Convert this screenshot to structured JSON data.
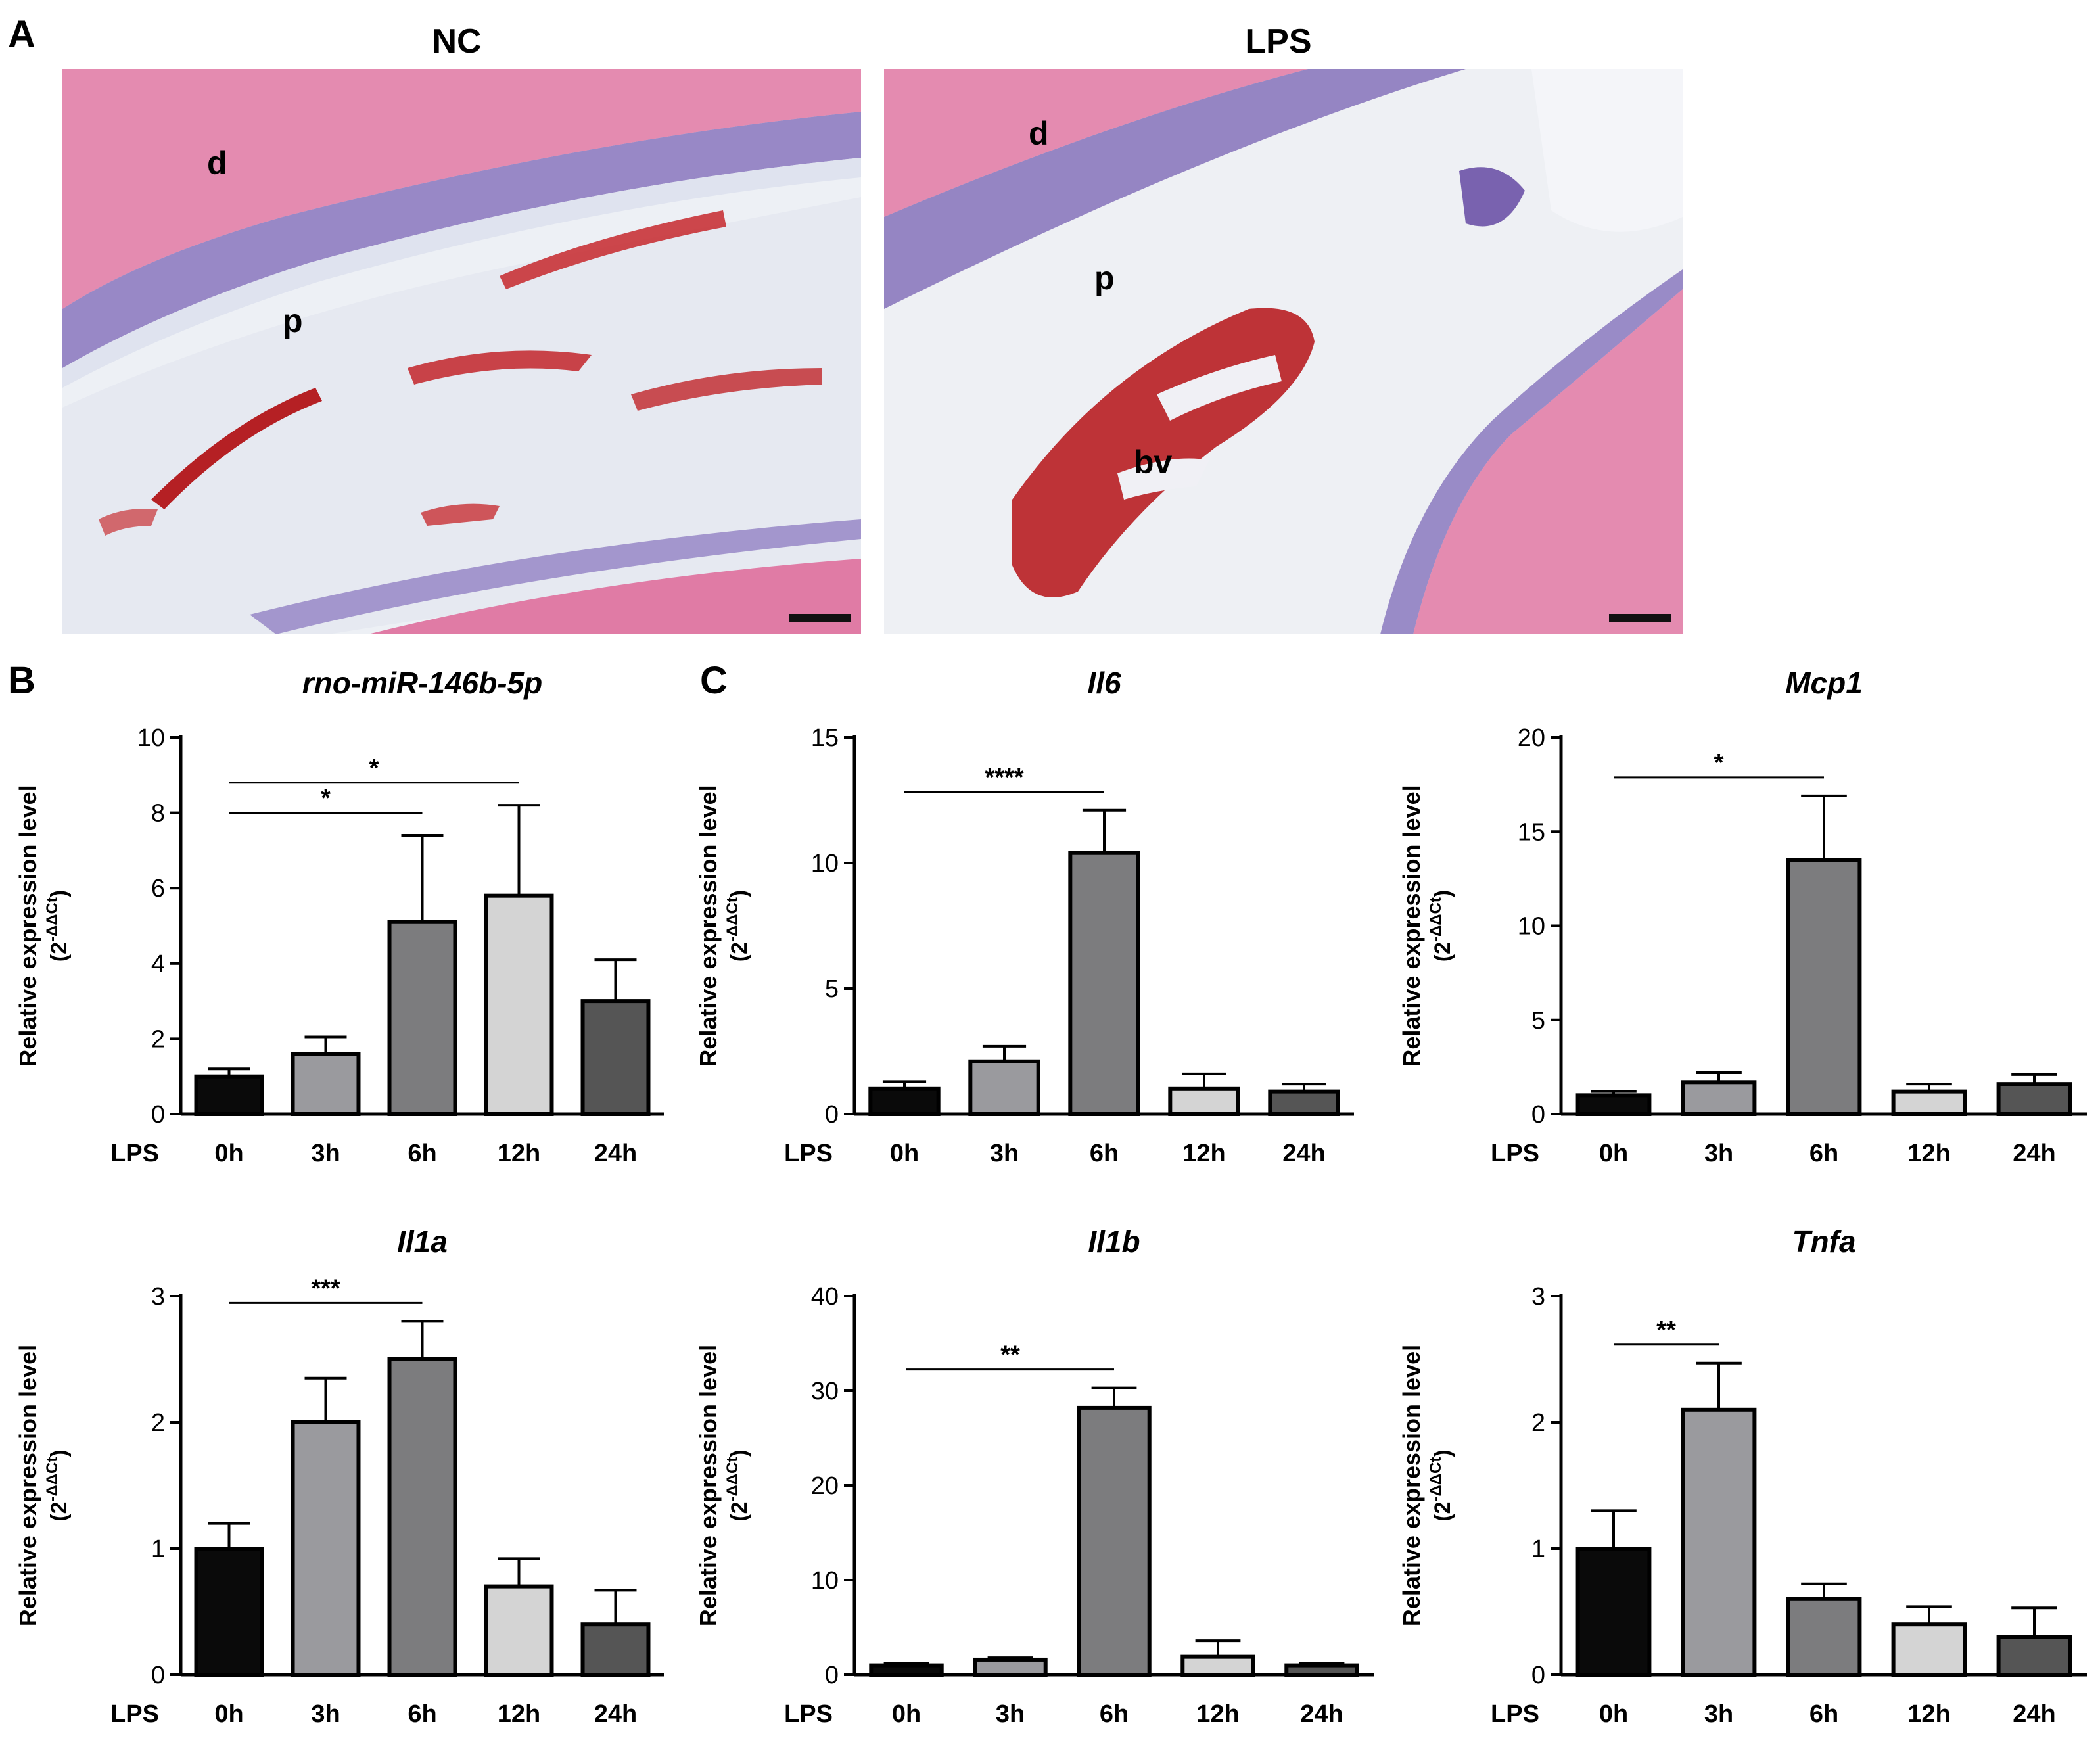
{
  "panel_letters": [
    "A",
    "B",
    "C"
  ],
  "histology": [
    {
      "title": "NC",
      "labels": [
        "d",
        "p"
      ]
    },
    {
      "title": "LPS",
      "labels": [
        "d",
        "p",
        "bv"
      ]
    }
  ],
  "ylabel_line1": "Relative expression level",
  "ylabel_line2_base": "(2",
  "ylabel_line2_exp": "-ΔΔCt",
  "ylabel_line2_close": ")",
  "x_prefix": "LPS",
  "colors": {
    "bar_0h": "#0a0a0a",
    "bar_3h": "#9a9a9e",
    "bar_6h": "#7c7c7e",
    "bar_12h": "#d4d4d4",
    "bar_24h": "#555555",
    "dentin": "#e589ad",
    "pulp": "#e8ecf3",
    "odontoblast": "#6a52a8",
    "blood": "#b81e22"
  },
  "chart_data": [
    {
      "type": "bar",
      "title": "rno-miR-146b-5p",
      "categories": [
        "0h",
        "3h",
        "6h",
        "12h",
        "24h"
      ],
      "values": [
        1.0,
        1.6,
        5.1,
        5.8,
        3.0
      ],
      "errors": [
        0.2,
        0.45,
        2.3,
        2.4,
        1.1
      ],
      "ylim": [
        0,
        10
      ],
      "yticks": [
        0,
        2,
        4,
        6,
        8,
        10
      ],
      "significance": [
        {
          "from": 0,
          "to": 2,
          "label": "*"
        },
        {
          "from": 0,
          "to": 3,
          "label": "*"
        }
      ]
    },
    {
      "type": "bar",
      "title": "Il6",
      "categories": [
        "0h",
        "3h",
        "6h",
        "12h",
        "24h"
      ],
      "values": [
        1.0,
        2.1,
        10.4,
        1.0,
        0.9
      ],
      "errors": [
        0.3,
        0.6,
        1.7,
        0.6,
        0.3
      ],
      "ylim": [
        0,
        15
      ],
      "yticks": [
        0,
        5,
        10,
        15
      ],
      "significance": [
        {
          "from": 0,
          "to": 2,
          "label": "****"
        }
      ]
    },
    {
      "type": "bar",
      "title": "Mcp1",
      "categories": [
        "0h",
        "3h",
        "6h",
        "12h",
        "24h"
      ],
      "values": [
        1.0,
        1.7,
        13.5,
        1.2,
        1.6
      ],
      "errors": [
        0.2,
        0.5,
        3.4,
        0.4,
        0.5
      ],
      "ylim": [
        0,
        20
      ],
      "yticks": [
        0,
        5,
        10,
        15,
        20
      ],
      "significance": [
        {
          "from": 0,
          "to": 2,
          "label": "*"
        }
      ]
    },
    {
      "type": "bar",
      "title": "Il1a",
      "categories": [
        "0h",
        "3h",
        "6h",
        "12h",
        "24h"
      ],
      "values": [
        1.0,
        2.0,
        2.5,
        0.7,
        0.4
      ],
      "errors": [
        0.2,
        0.35,
        0.3,
        0.22,
        0.27
      ],
      "ylim": [
        0,
        3
      ],
      "yticks": [
        0,
        1,
        2,
        3
      ],
      "significance": [
        {
          "from": 0,
          "to": 2,
          "label": "***"
        }
      ]
    },
    {
      "type": "bar",
      "title": "Il1b",
      "categories": [
        "0h",
        "3h",
        "6h",
        "12h",
        "24h"
      ],
      "values": [
        1.0,
        1.6,
        28.2,
        1.9,
        1.0
      ],
      "errors": [
        0.2,
        0.2,
        2.1,
        1.7,
        0.2
      ],
      "ylim": [
        0,
        40
      ],
      "yticks": [
        0,
        10,
        20,
        30,
        40
      ],
      "significance": [
        {
          "from": 0,
          "to": 2,
          "label": "**"
        }
      ]
    },
    {
      "type": "bar",
      "title": "Tnfa",
      "categories": [
        "0h",
        "3h",
        "6h",
        "12h",
        "24h"
      ],
      "values": [
        1.0,
        2.1,
        0.6,
        0.4,
        0.3
      ],
      "errors": [
        0.3,
        0.37,
        0.12,
        0.14,
        0.23
      ],
      "ylim": [
        0,
        3
      ],
      "yticks": [
        0,
        1,
        2,
        3
      ],
      "significance": [
        {
          "from": 0,
          "to": 1,
          "label": "**"
        }
      ]
    }
  ]
}
